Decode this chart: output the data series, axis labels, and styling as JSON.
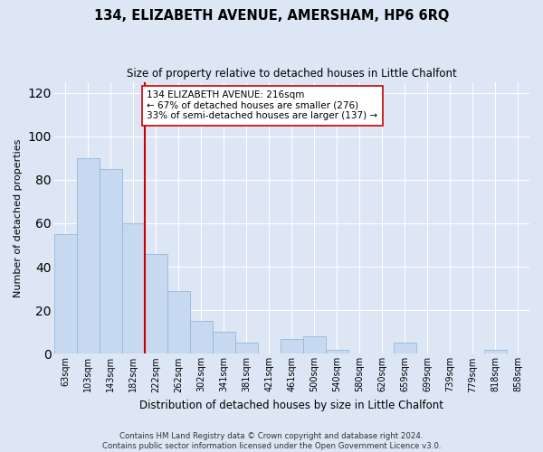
{
  "title": "134, ELIZABETH AVENUE, AMERSHAM, HP6 6RQ",
  "subtitle": "Size of property relative to detached houses in Little Chalfont",
  "xlabel": "Distribution of detached houses by size in Little Chalfont",
  "ylabel": "Number of detached properties",
  "categories": [
    "63sqm",
    "103sqm",
    "143sqm",
    "182sqm",
    "222sqm",
    "262sqm",
    "302sqm",
    "341sqm",
    "381sqm",
    "421sqm",
    "461sqm",
    "500sqm",
    "540sqm",
    "580sqm",
    "620sqm",
    "659sqm",
    "699sqm",
    "739sqm",
    "779sqm",
    "818sqm",
    "858sqm"
  ],
  "values": [
    55,
    90,
    85,
    60,
    46,
    29,
    15,
    10,
    5,
    0,
    7,
    8,
    2,
    0,
    0,
    5,
    0,
    0,
    0,
    2,
    0
  ],
  "bar_color": "#c6d9f0",
  "bar_edge_color": "#95b8d8",
  "vline_color": "#cc0000",
  "annotation_text": "134 ELIZABETH AVENUE: 216sqm\n← 67% of detached houses are smaller (276)\n33% of semi-detached houses are larger (137) →",
  "annotation_box_color": "#ffffff",
  "annotation_box_edge": "#cc0000",
  "ylim": [
    0,
    125
  ],
  "yticks": [
    0,
    20,
    40,
    60,
    80,
    100,
    120
  ],
  "footer": "Contains HM Land Registry data © Crown copyright and database right 2024.\nContains public sector information licensed under the Open Government Licence v3.0.",
  "background_color": "#dce6f5",
  "plot_bg_color": "#dce6f5",
  "grid_color": "#ffffff"
}
